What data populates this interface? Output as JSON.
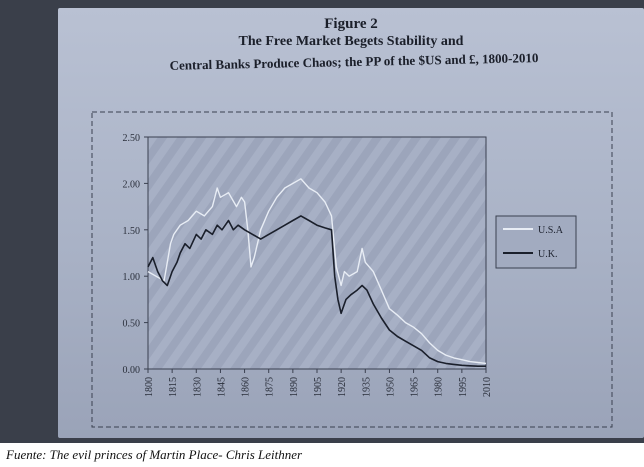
{
  "figure": {
    "label": "Figure 2",
    "title_line1": "The Free Market Begets Stability and",
    "title_line2": "Central Banks Produce Chaos; the PP of the $US and £, 1800-2010"
  },
  "caption": "Fuente: The evil princes of Martin Place- Chris Leithner",
  "chart_data": {
    "type": "line",
    "title": "The Free Market Begets Stability and Central Banks Produce Chaos; the PP of the $US and £, 1800-2010",
    "xlabel": "",
    "ylabel": "",
    "xlim": [
      1800,
      2010
    ],
    "ylim": [
      0,
      2.5
    ],
    "x_ticks": [
      "1800",
      "1815",
      "1830",
      "1845",
      "1860",
      "1875",
      "1890",
      "1905",
      "1920",
      "1935",
      "1950",
      "1965",
      "1980",
      "1995",
      "2010"
    ],
    "y_ticks": [
      "0.00",
      "0.50",
      "1.00",
      "1.50",
      "2.00",
      "2.50"
    ],
    "grid": false,
    "legend_position": "right",
    "series": [
      {
        "name": "U.S.A",
        "color": "#e8edf5",
        "points": [
          [
            1800,
            1.05
          ],
          [
            1805,
            1.0
          ],
          [
            1810,
            0.95
          ],
          [
            1814,
            1.35
          ],
          [
            1816,
            1.45
          ],
          [
            1820,
            1.55
          ],
          [
            1825,
            1.6
          ],
          [
            1830,
            1.7
          ],
          [
            1835,
            1.65
          ],
          [
            1840,
            1.75
          ],
          [
            1843,
            1.95
          ],
          [
            1845,
            1.85
          ],
          [
            1850,
            1.9
          ],
          [
            1855,
            1.75
          ],
          [
            1858,
            1.85
          ],
          [
            1860,
            1.8
          ],
          [
            1862,
            1.5
          ],
          [
            1864,
            1.1
          ],
          [
            1866,
            1.2
          ],
          [
            1870,
            1.5
          ],
          [
            1875,
            1.7
          ],
          [
            1880,
            1.85
          ],
          [
            1885,
            1.95
          ],
          [
            1890,
            2.0
          ],
          [
            1895,
            2.05
          ],
          [
            1900,
            1.95
          ],
          [
            1905,
            1.9
          ],
          [
            1910,
            1.8
          ],
          [
            1914,
            1.65
          ],
          [
            1917,
            1.1
          ],
          [
            1920,
            0.9
          ],
          [
            1922,
            1.05
          ],
          [
            1925,
            1.0
          ],
          [
            1930,
            1.05
          ],
          [
            1933,
            1.3
          ],
          [
            1935,
            1.15
          ],
          [
            1940,
            1.05
          ],
          [
            1945,
            0.85
          ],
          [
            1950,
            0.65
          ],
          [
            1955,
            0.58
          ],
          [
            1960,
            0.5
          ],
          [
            1965,
            0.45
          ],
          [
            1970,
            0.38
          ],
          [
            1975,
            0.28
          ],
          [
            1980,
            0.2
          ],
          [
            1985,
            0.15
          ],
          [
            1990,
            0.12
          ],
          [
            1995,
            0.1
          ],
          [
            2000,
            0.08
          ],
          [
            2005,
            0.07
          ],
          [
            2010,
            0.06
          ]
        ]
      },
      {
        "name": "U.K.",
        "color": "#1a1f2b",
        "points": [
          [
            1800,
            1.1
          ],
          [
            1803,
            1.2
          ],
          [
            1806,
            1.05
          ],
          [
            1809,
            0.95
          ],
          [
            1812,
            0.9
          ],
          [
            1815,
            1.05
          ],
          [
            1818,
            1.15
          ],
          [
            1820,
            1.25
          ],
          [
            1823,
            1.35
          ],
          [
            1826,
            1.3
          ],
          [
            1830,
            1.45
          ],
          [
            1833,
            1.4
          ],
          [
            1836,
            1.5
          ],
          [
            1840,
            1.45
          ],
          [
            1843,
            1.55
          ],
          [
            1846,
            1.5
          ],
          [
            1850,
            1.6
          ],
          [
            1853,
            1.5
          ],
          [
            1856,
            1.55
          ],
          [
            1860,
            1.5
          ],
          [
            1865,
            1.45
          ],
          [
            1870,
            1.4
          ],
          [
            1875,
            1.45
          ],
          [
            1880,
            1.5
          ],
          [
            1885,
            1.55
          ],
          [
            1890,
            1.6
          ],
          [
            1895,
            1.65
          ],
          [
            1900,
            1.6
          ],
          [
            1905,
            1.55
          ],
          [
            1910,
            1.52
          ],
          [
            1914,
            1.5
          ],
          [
            1916,
            1.0
          ],
          [
            1918,
            0.75
          ],
          [
            1920,
            0.6
          ],
          [
            1923,
            0.75
          ],
          [
            1926,
            0.8
          ],
          [
            1930,
            0.85
          ],
          [
            1933,
            0.9
          ],
          [
            1936,
            0.85
          ],
          [
            1940,
            0.7
          ],
          [
            1945,
            0.55
          ],
          [
            1950,
            0.42
          ],
          [
            1955,
            0.35
          ],
          [
            1960,
            0.3
          ],
          [
            1965,
            0.25
          ],
          [
            1970,
            0.2
          ],
          [
            1975,
            0.12
          ],
          [
            1980,
            0.08
          ],
          [
            1985,
            0.06
          ],
          [
            1990,
            0.05
          ],
          [
            1995,
            0.04
          ],
          [
            2000,
            0.035
          ],
          [
            2005,
            0.03
          ],
          [
            2010,
            0.03
          ]
        ]
      }
    ]
  }
}
